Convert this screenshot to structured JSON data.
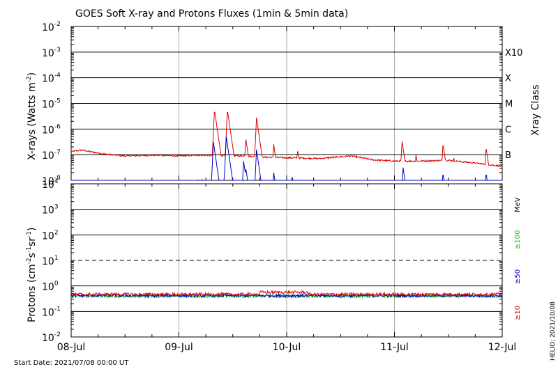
{
  "title": "GOES Soft X-ray and Protons Fluxes   (1min & 5min data)",
  "start_date": "Start Date: 2021/07/08 00:00 UT",
  "credit": "HELIO: 2021/10/08",
  "colors": {
    "xray_long": "#dd0000",
    "xray_short": "#0000cc",
    "p10": "#dd0000",
    "p50": "#0000cc",
    "p100": "#00cc00",
    "grid_day": "#aaaaaa"
  },
  "chart_data": [
    {
      "type": "line",
      "panel": "xrays",
      "ylabel": "X-rays (Watts m",
      "ylabel_sup": "-2",
      "ylabel_end": ")",
      "ylog": true,
      "ylim_exp": [
        -8,
        -2
      ],
      "y_ticks": [
        {
          "base": "10",
          "exp": "-2"
        },
        {
          "base": "10",
          "exp": "-3"
        },
        {
          "base": "10",
          "exp": "-4"
        },
        {
          "base": "10",
          "exp": "-5"
        },
        {
          "base": "10",
          "exp": "-6"
        },
        {
          "base": "10",
          "exp": "-7"
        },
        {
          "base": "10",
          "exp": "-8"
        }
      ],
      "right_title": "Xray Class",
      "classes": [
        {
          "label": "X10",
          "exp": -3
        },
        {
          "label": "X",
          "exp": -4
        },
        {
          "label": "M",
          "exp": -5
        },
        {
          "label": "C",
          "exp": -6
        },
        {
          "label": "B",
          "exp": -7
        }
      ],
      "x_days": [
        0,
        1,
        2,
        3,
        4
      ],
      "series": [
        {
          "key": "long",
          "baseline_log": [
            [
              0,
              -6.88
            ],
            [
              0.1,
              -6.82
            ],
            [
              0.2,
              -6.9
            ],
            [
              0.3,
              -6.97
            ],
            [
              0.5,
              -7.05
            ],
            [
              0.8,
              -7.02
            ],
            [
              1.0,
              -7.05
            ],
            [
              1.2,
              -7.02
            ],
            [
              1.6,
              -7.05
            ],
            [
              1.8,
              -7.1
            ],
            [
              2.0,
              -7.12
            ],
            [
              2.3,
              -7.15
            ],
            [
              2.6,
              -7.05
            ],
            [
              2.8,
              -7.2
            ],
            [
              3.0,
              -7.25
            ],
            [
              3.2,
              -7.25
            ],
            [
              3.5,
              -7.22
            ],
            [
              3.8,
              -7.35
            ],
            [
              4.0,
              -7.45
            ]
          ],
          "peaks": [
            [
              1.33,
              -5.25
            ],
            [
              1.45,
              -5.25
            ],
            [
              1.62,
              -6.35
            ],
            [
              1.72,
              -5.55
            ],
            [
              1.88,
              -6.6
            ],
            [
              2.1,
              -6.8
            ],
            [
              2.45,
              -7.0
            ],
            [
              3.07,
              -6.45
            ],
            [
              3.2,
              -7.0
            ],
            [
              3.45,
              -6.55
            ],
            [
              3.55,
              -7.1
            ],
            [
              3.85,
              -6.7
            ]
          ]
        },
        {
          "key": "short",
          "baseline_log": [
            [
              0,
              -8.2
            ],
            [
              0.5,
              -8.25
            ],
            [
              1.0,
              -8.15
            ],
            [
              1.2,
              -8.05
            ],
            [
              1.4,
              -8.1
            ],
            [
              1.8,
              -8.2
            ],
            [
              2.0,
              -8.3
            ],
            [
              2.5,
              -8.35
            ],
            [
              3.0,
              -8.4
            ],
            [
              4.0,
              -8.4
            ]
          ],
          "peaks": [
            [
              1.32,
              -6.5
            ],
            [
              1.44,
              -6.3
            ],
            [
              1.6,
              -7.25
            ],
            [
              1.62,
              -7.5
            ],
            [
              1.72,
              -6.8
            ],
            [
              1.88,
              -7.7
            ],
            [
              2.05,
              -7.8
            ],
            [
              3.08,
              -7.5
            ],
            [
              3.45,
              -7.7
            ],
            [
              3.85,
              -7.7
            ]
          ]
        }
      ]
    },
    {
      "type": "line",
      "panel": "protons",
      "ylabel": "Protons (cm",
      "ylabel_parts": [
        "-2",
        "s",
        "-1",
        "sr",
        "-1",
        ")"
      ],
      "ylog": true,
      "ylim_exp": [
        -2,
        4
      ],
      "y_ticks": [
        {
          "base": "10",
          "exp": "4"
        },
        {
          "base": "10",
          "exp": "3"
        },
        {
          "base": "10",
          "exp": "2"
        },
        {
          "base": "10",
          "exp": "1"
        },
        {
          "base": "10",
          "exp": "0"
        },
        {
          "base": "10",
          "exp": "-1"
        },
        {
          "base": "10",
          "exp": "-2"
        }
      ],
      "threshold_exp": 1,
      "unit": "MeV",
      "series": [
        {
          "name": "≥10",
          "key": "p10",
          "level_log": -0.33
        },
        {
          "name": "≥50",
          "key": "p50",
          "level_log": -0.38
        },
        {
          "name": "≥100",
          "key": "p100",
          "level_log": -0.4
        }
      ],
      "x_ticks": [
        "08-Jul",
        "09-Jul",
        "10-Jul",
        "11-Jul",
        "12-Jul"
      ]
    }
  ]
}
